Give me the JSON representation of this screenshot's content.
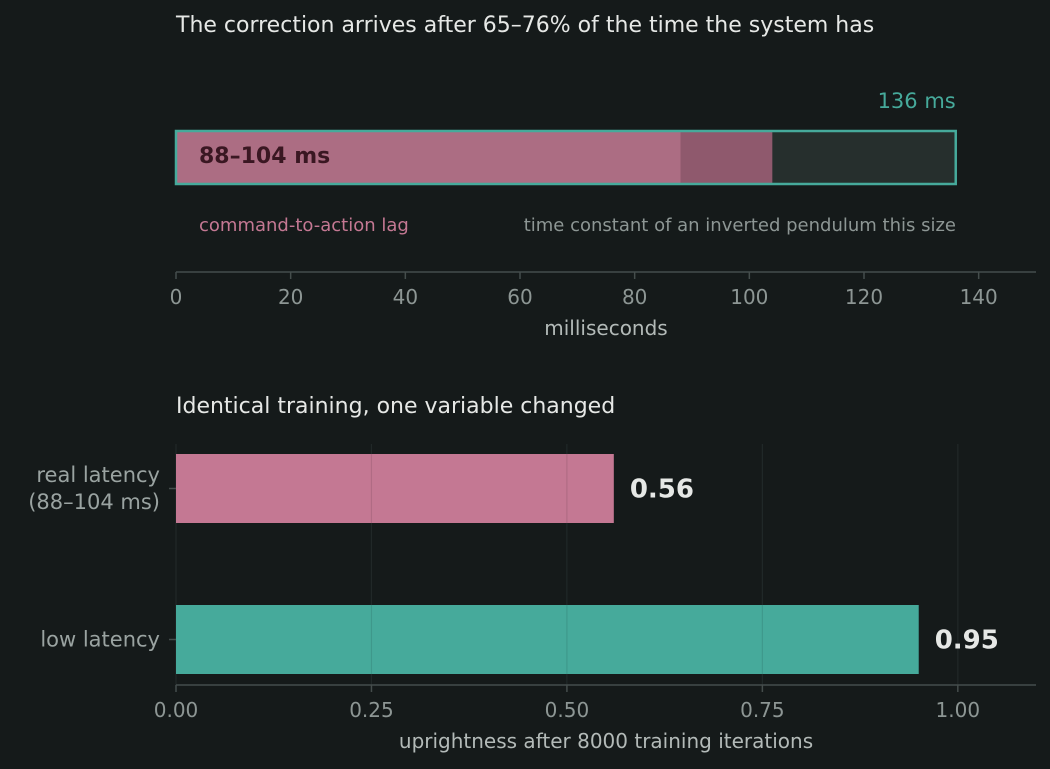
{
  "colors": {
    "background": "#151a1a",
    "pink": "#c47893",
    "teal": "#46aa9b",
    "text": "#e6e8e6",
    "muted": "#8d9694",
    "axis": "#454d4c",
    "grid": "#212828",
    "dark_label": "#3a1722",
    "track": "#262f2d"
  },
  "chart_data": [
    {
      "type": "bar",
      "orientation": "horizontal",
      "title": "The correction arrives after 65–76% of the time the system has",
      "xlabel": "milliseconds",
      "xlim": [
        0,
        150
      ],
      "xticks": [
        0,
        20,
        40,
        60,
        80,
        100,
        120,
        140
      ],
      "series": [
        {
          "name": "command-to-action lag",
          "range": [
            88,
            104
          ],
          "label": "88–104 ms",
          "color": "#c47893"
        },
        {
          "name": "time constant of an inverted pendulum this size",
          "value": 136,
          "label": "136 ms",
          "color": "#46aa9b"
        }
      ]
    },
    {
      "type": "bar",
      "orientation": "horizontal",
      "title": "Identical training, one variable changed",
      "xlabel": "uprightness after 8000 training iterations",
      "xlim": [
        0,
        1.1
      ],
      "xticks": [
        "0.00",
        "0.25",
        "0.50",
        "0.75",
        "1.00"
      ],
      "grid": true,
      "categories": [
        {
          "label_lines": [
            "real latency",
            "(88–104 ms)"
          ],
          "value": 0.56,
          "value_label": "0.56",
          "color": "#c47893"
        },
        {
          "label_lines": [
            "low latency"
          ],
          "value": 0.95,
          "value_label": "0.95",
          "color": "#46aa9b"
        }
      ]
    }
  ]
}
